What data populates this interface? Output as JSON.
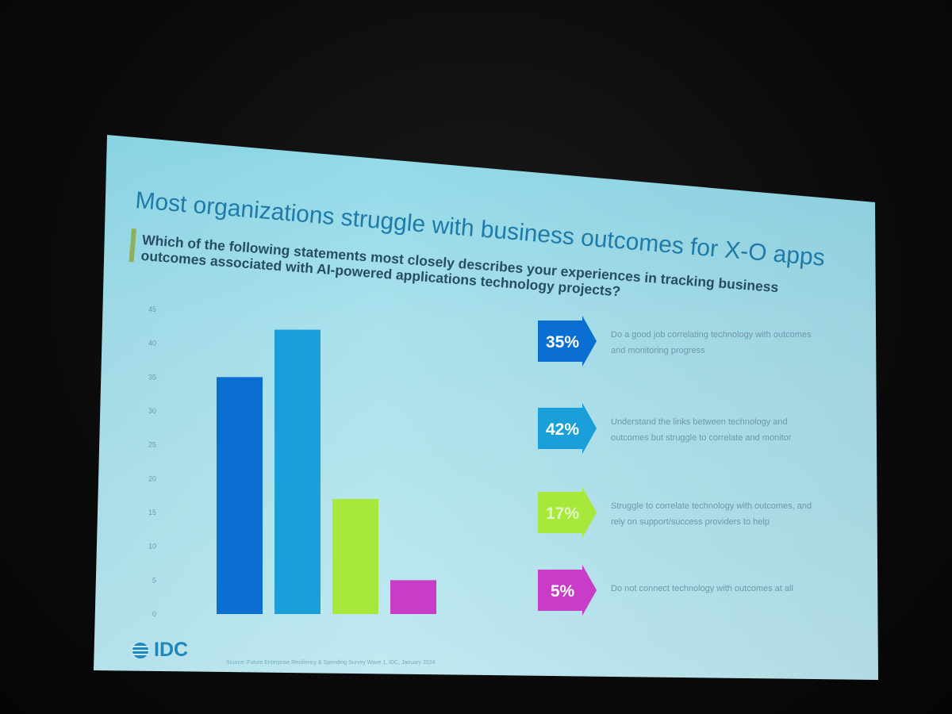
{
  "slide": {
    "title": "Most organizations struggle with business outcomes for X-O apps",
    "question": "Which of the following statements most closely describes your experiences in tracking business outcomes associated with AI-powered applications technology projects?",
    "source": "Source: Future Enterprise Resiliency & Spending Survey Wave 1, IDC, January 2024",
    "logo": "IDC"
  },
  "colors": {
    "blue": "#0a6fd0",
    "light_blue": "#1a9fd8",
    "green": "#a8e83a",
    "magenta": "#c83cc8",
    "title": "#1f7aa8"
  },
  "chart_data": {
    "type": "bar",
    "categories": [
      "",
      "",
      "",
      ""
    ],
    "values": [
      35,
      42,
      17,
      5
    ],
    "ylim": [
      0,
      45
    ],
    "yticks": [
      0,
      5,
      10,
      15,
      20,
      25,
      30,
      35,
      40,
      45
    ],
    "grid": false,
    "legend": "right",
    "legend_items": [
      {
        "value": "35%",
        "label": "Do a good job correlating technology with outcomes and monitoring progress",
        "color": "#0a6fd0"
      },
      {
        "value": "42%",
        "label": "Understand the links between technology and outcomes but struggle to correlate and monitor",
        "color": "#1a9fd8"
      },
      {
        "value": "17%",
        "label": "Struggle to correlate technology with outcomes, and rely on support/success providers to help",
        "color": "#a8e83a"
      },
      {
        "value": "5%",
        "label": "Do not connect technology with outcomes at all",
        "color": "#c83cc8"
      }
    ]
  }
}
